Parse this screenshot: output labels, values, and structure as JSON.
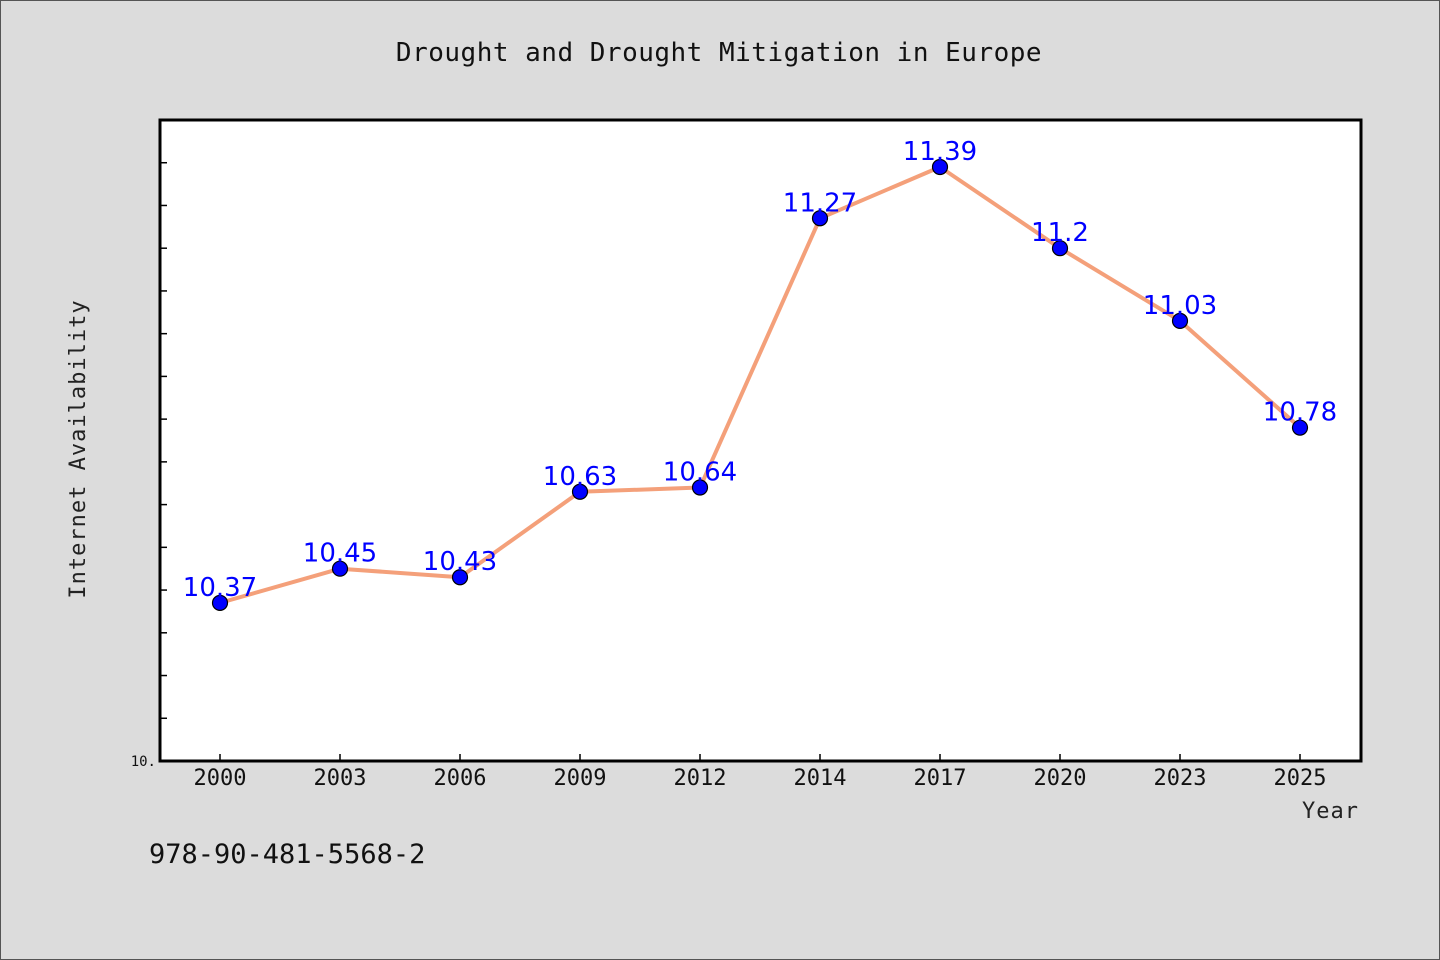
{
  "chart_data": {
    "type": "line",
    "title": "Drought and Drought Mitigation in Europe",
    "xlabel": "Year",
    "ylabel": "Internet Availability",
    "categories": [
      "2000",
      "2003",
      "2006",
      "2009",
      "2012",
      "2014",
      "2017",
      "2020",
      "2023",
      "2025"
    ],
    "series": [
      {
        "values": [
          10.37,
          10.45,
          10.43,
          10.63,
          10.64,
          11.27,
          11.39,
          11.2,
          11.03,
          10.78
        ],
        "labels": [
          "10.37",
          "10.45",
          "10.43",
          "10.63",
          "10.64",
          "11.27",
          "11.39",
          "11.2",
          "11.03",
          "10.78"
        ],
        "line_color": "#f4a07a",
        "marker_color": "#0000ff"
      }
    ],
    "ylim": [
      10.0,
      11.5
    ],
    "y_tick_step": 0.1,
    "y_tick_labels": [
      "10."
    ],
    "grid": false,
    "legend": false
  },
  "footer": {
    "isbn": "978-90-481-5568-2"
  }
}
